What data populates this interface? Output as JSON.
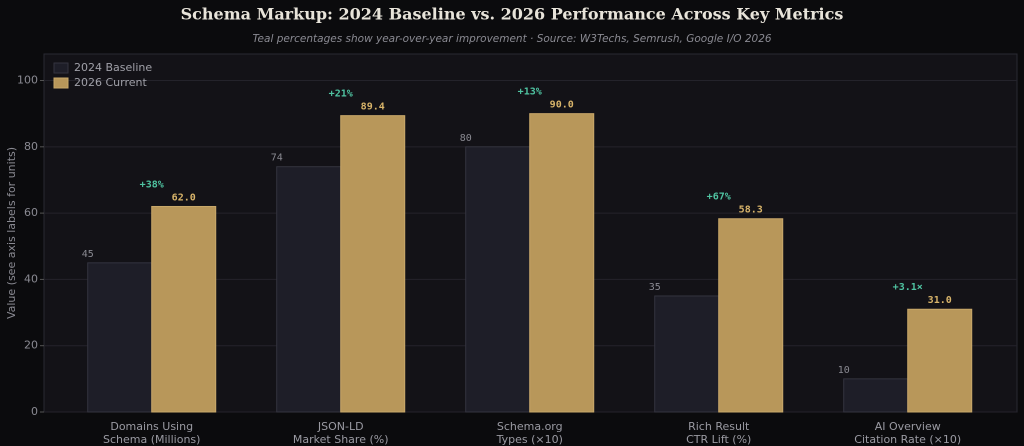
{
  "chart_data": {
    "type": "bar",
    "title": "Schema Markup: 2024 Baseline vs. 2026 Performance Across Key Metrics",
    "subtitle": "Teal percentages show year-over-year improvement  ·  Source: W3Techs, Semrush, Google I/O 2026",
    "y_label": "Value (see axis labels for units)",
    "categories": [
      "Domains Using\nSchema (Millions)",
      "JSON-LD\nMarket Share (%)",
      "Schema.org\nTypes (×10)",
      "Rich Result\nCTR Lift (%)",
      "AI Overview\nCitation Rate (×10)"
    ],
    "series": [
      {
        "name": "2024 Baseline",
        "color": "#1e1e28",
        "values": [
          45,
          74,
          80,
          35,
          10
        ],
        "value_labels": [
          "45",
          "74",
          "80",
          "35",
          "10"
        ]
      },
      {
        "name": "2026 Current",
        "color": "#b8975a",
        "values": [
          62.0,
          89.4,
          90.0,
          58.3,
          31.0
        ],
        "value_labels": [
          "62.0",
          "89.4",
          "90.0",
          "58.3",
          "31.0"
        ]
      }
    ],
    "annotations": [
      "+38%",
      "+21%",
      "+13%",
      "+67%",
      "+3.1×"
    ],
    "annotation_color": "#4fc3a1",
    "ylim": [
      0,
      108
    ],
    "yticks": [
      0,
      20,
      40,
      60,
      80,
      100
    ],
    "grid": true,
    "legend": "upper left"
  }
}
